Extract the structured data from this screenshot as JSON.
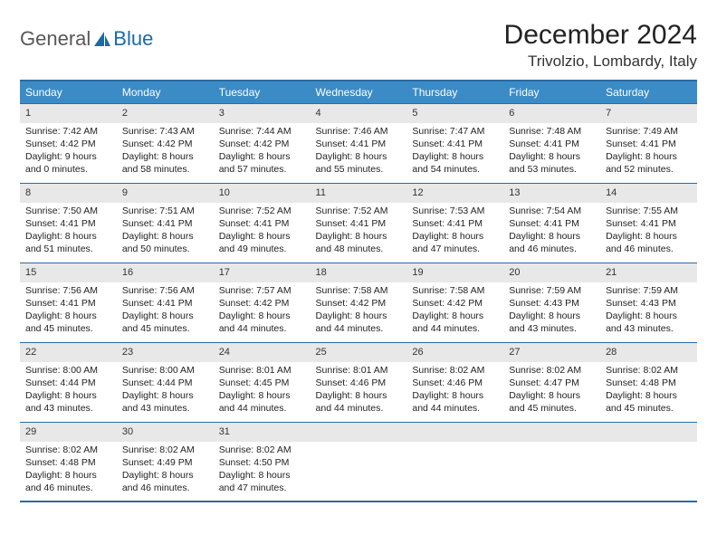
{
  "logo": {
    "text1": "General",
    "text2": "Blue"
  },
  "title": "December 2024",
  "location": "Trivolzio, Lombardy, Italy",
  "colors": {
    "header_bg": "#3b8bc6",
    "header_text": "#ffffff",
    "border": "#2b6ca3",
    "daynum_bg": "#e8e8e8",
    "logo_gray": "#585858",
    "logo_blue": "#1b6aa8"
  },
  "weekdays": [
    "Sunday",
    "Monday",
    "Tuesday",
    "Wednesday",
    "Thursday",
    "Friday",
    "Saturday"
  ],
  "weeks": [
    [
      {
        "n": "1",
        "sr": "7:42 AM",
        "ss": "4:42 PM",
        "dl": "9 hours and 0 minutes."
      },
      {
        "n": "2",
        "sr": "7:43 AM",
        "ss": "4:42 PM",
        "dl": "8 hours and 58 minutes."
      },
      {
        "n": "3",
        "sr": "7:44 AM",
        "ss": "4:42 PM",
        "dl": "8 hours and 57 minutes."
      },
      {
        "n": "4",
        "sr": "7:46 AM",
        "ss": "4:41 PM",
        "dl": "8 hours and 55 minutes."
      },
      {
        "n": "5",
        "sr": "7:47 AM",
        "ss": "4:41 PM",
        "dl": "8 hours and 54 minutes."
      },
      {
        "n": "6",
        "sr": "7:48 AM",
        "ss": "4:41 PM",
        "dl": "8 hours and 53 minutes."
      },
      {
        "n": "7",
        "sr": "7:49 AM",
        "ss": "4:41 PM",
        "dl": "8 hours and 52 minutes."
      }
    ],
    [
      {
        "n": "8",
        "sr": "7:50 AM",
        "ss": "4:41 PM",
        "dl": "8 hours and 51 minutes."
      },
      {
        "n": "9",
        "sr": "7:51 AM",
        "ss": "4:41 PM",
        "dl": "8 hours and 50 minutes."
      },
      {
        "n": "10",
        "sr": "7:52 AM",
        "ss": "4:41 PM",
        "dl": "8 hours and 49 minutes."
      },
      {
        "n": "11",
        "sr": "7:52 AM",
        "ss": "4:41 PM",
        "dl": "8 hours and 48 minutes."
      },
      {
        "n": "12",
        "sr": "7:53 AM",
        "ss": "4:41 PM",
        "dl": "8 hours and 47 minutes."
      },
      {
        "n": "13",
        "sr": "7:54 AM",
        "ss": "4:41 PM",
        "dl": "8 hours and 46 minutes."
      },
      {
        "n": "14",
        "sr": "7:55 AM",
        "ss": "4:41 PM",
        "dl": "8 hours and 46 minutes."
      }
    ],
    [
      {
        "n": "15",
        "sr": "7:56 AM",
        "ss": "4:41 PM",
        "dl": "8 hours and 45 minutes."
      },
      {
        "n": "16",
        "sr": "7:56 AM",
        "ss": "4:41 PM",
        "dl": "8 hours and 45 minutes."
      },
      {
        "n": "17",
        "sr": "7:57 AM",
        "ss": "4:42 PM",
        "dl": "8 hours and 44 minutes."
      },
      {
        "n": "18",
        "sr": "7:58 AM",
        "ss": "4:42 PM",
        "dl": "8 hours and 44 minutes."
      },
      {
        "n": "19",
        "sr": "7:58 AM",
        "ss": "4:42 PM",
        "dl": "8 hours and 44 minutes."
      },
      {
        "n": "20",
        "sr": "7:59 AM",
        "ss": "4:43 PM",
        "dl": "8 hours and 43 minutes."
      },
      {
        "n": "21",
        "sr": "7:59 AM",
        "ss": "4:43 PM",
        "dl": "8 hours and 43 minutes."
      }
    ],
    [
      {
        "n": "22",
        "sr": "8:00 AM",
        "ss": "4:44 PM",
        "dl": "8 hours and 43 minutes."
      },
      {
        "n": "23",
        "sr": "8:00 AM",
        "ss": "4:44 PM",
        "dl": "8 hours and 43 minutes."
      },
      {
        "n": "24",
        "sr": "8:01 AM",
        "ss": "4:45 PM",
        "dl": "8 hours and 44 minutes."
      },
      {
        "n": "25",
        "sr": "8:01 AM",
        "ss": "4:46 PM",
        "dl": "8 hours and 44 minutes."
      },
      {
        "n": "26",
        "sr": "8:02 AM",
        "ss": "4:46 PM",
        "dl": "8 hours and 44 minutes."
      },
      {
        "n": "27",
        "sr": "8:02 AM",
        "ss": "4:47 PM",
        "dl": "8 hours and 45 minutes."
      },
      {
        "n": "28",
        "sr": "8:02 AM",
        "ss": "4:48 PM",
        "dl": "8 hours and 45 minutes."
      }
    ],
    [
      {
        "n": "29",
        "sr": "8:02 AM",
        "ss": "4:48 PM",
        "dl": "8 hours and 46 minutes."
      },
      {
        "n": "30",
        "sr": "8:02 AM",
        "ss": "4:49 PM",
        "dl": "8 hours and 46 minutes."
      },
      {
        "n": "31",
        "sr": "8:02 AM",
        "ss": "4:50 PM",
        "dl": "8 hours and 47 minutes."
      },
      {
        "n": "",
        "empty": true
      },
      {
        "n": "",
        "empty": true
      },
      {
        "n": "",
        "empty": true
      },
      {
        "n": "",
        "empty": true
      }
    ]
  ],
  "labels": {
    "sunrise": "Sunrise: ",
    "sunset": "Sunset: ",
    "daylight": "Daylight: "
  }
}
